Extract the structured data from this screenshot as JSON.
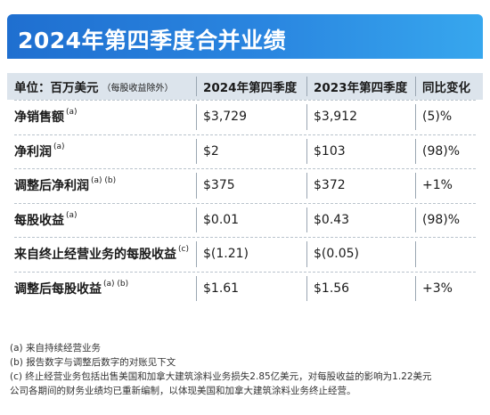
{
  "title": "2024年第四季度合并业绩",
  "table": {
    "header": {
      "unit": "单位：百万美元",
      "unit_note": "（每股收益除外）",
      "col1": "2024年第四季度",
      "col2": "2023年第四季度",
      "col3": "同比变化"
    },
    "rows": [
      {
        "label": "净销售额",
        "fn": "(a)",
        "v2024": "$3,729",
        "v2023": "$3,912",
        "change": "(5)%"
      },
      {
        "label": "净利润",
        "fn": "(a)",
        "v2024": "$2",
        "v2023": "$103",
        "change": "(98)%"
      },
      {
        "label": "调整后净利润",
        "fn": "(a) (b)",
        "v2024": "$375",
        "v2023": "$372",
        "change": "+1%"
      },
      {
        "label": "每股收益",
        "fn": "(a)",
        "v2024": "$0.01",
        "v2023": "$0.43",
        "change": "(98)%"
      },
      {
        "label": "来自终止经营业务的每股收益",
        "fn": "(c)",
        "v2024": "$(1.21)",
        "v2023": "$(0.05)",
        "change": ""
      },
      {
        "label": "调整后每股收益",
        "fn": "(a) (b)",
        "v2024": "$1.61",
        "v2023": "$1.56",
        "change": "+3%"
      }
    ]
  },
  "footnotes": [
    "(a) 来自持续经营业务",
    "(b) 报告数字与调整后数字的对账见下文",
    "(c) 终止经营业务包括出售美国和加拿大建筑涂料业务损失2.85亿美元，对每股收益的影响为1.22美元",
    "公司各期间的财务业绩均已重新编制，以体现美国和加拿大建筑涂料业务终止经营。"
  ]
}
